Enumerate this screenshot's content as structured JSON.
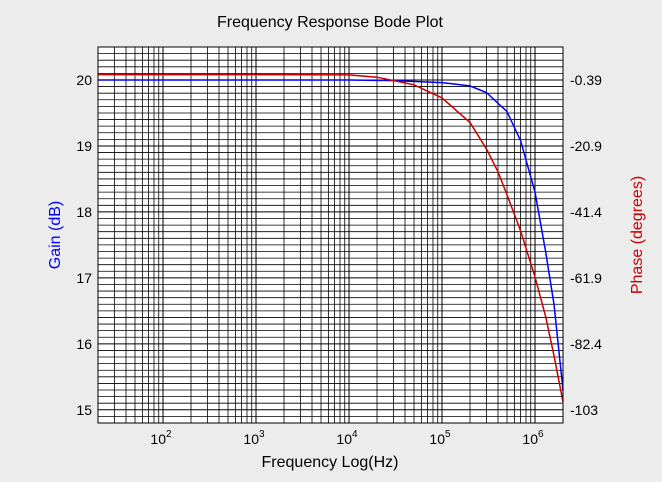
{
  "chart_data": {
    "type": "line",
    "title": "Frequency Response Bode Plot",
    "xlabel": "Frequency Log(Hz)",
    "ylabel": "Gain (dB)",
    "y2label": "Phase (degrees)",
    "x_scale": "log",
    "xlim": [
      20,
      2000000
    ],
    "ylim": [
      14.8,
      20.5
    ],
    "y2lim": [
      -106.5,
      8
    ],
    "x_ticks": [
      {
        "base": "10",
        "exp": "2",
        "value": 100
      },
      {
        "base": "10",
        "exp": "3",
        "value": 1000
      },
      {
        "base": "10",
        "exp": "4",
        "value": 10000
      },
      {
        "base": "10",
        "exp": "5",
        "value": 100000
      },
      {
        "base": "10",
        "exp": "6",
        "value": 1000000
      }
    ],
    "y_ticks": [
      "15",
      "16",
      "17",
      "18",
      "19",
      "20"
    ],
    "y2_ticks": [
      "-0.39",
      "-20.9",
      "-41.4",
      "-61.9",
      "-82.4",
      "-103"
    ],
    "grid": true,
    "colors": {
      "gain": "#0000ff",
      "phase": "#cc0000",
      "background": "#ececec",
      "plot_background": "#ffffff"
    },
    "series": [
      {
        "axis": "left",
        "x": [
          20,
          100,
          1000,
          10000,
          30000,
          100000,
          200000,
          300000,
          500000,
          700000,
          1000000,
          1300000,
          1600000,
          2000000
        ],
        "y": [
          20,
          20,
          20,
          20,
          19.99,
          19.96,
          19.91,
          19.81,
          19.52,
          19.08,
          18.3,
          17.4,
          16.6,
          15.3
        ]
      },
      {
        "axis": "right",
        "x": [
          20,
          1000,
          10000,
          20000,
          50000,
          100000,
          200000,
          300000,
          400000,
          500000,
          700000,
          1000000,
          1300000,
          1600000,
          2000000
        ],
        "y": [
          -0.39,
          -0.39,
          -0.5,
          -1.2,
          -3.5,
          -7.5,
          -15,
          -23,
          -30,
          -37,
          -48,
          -62,
          -74,
          -86,
          -100
        ]
      }
    ]
  }
}
